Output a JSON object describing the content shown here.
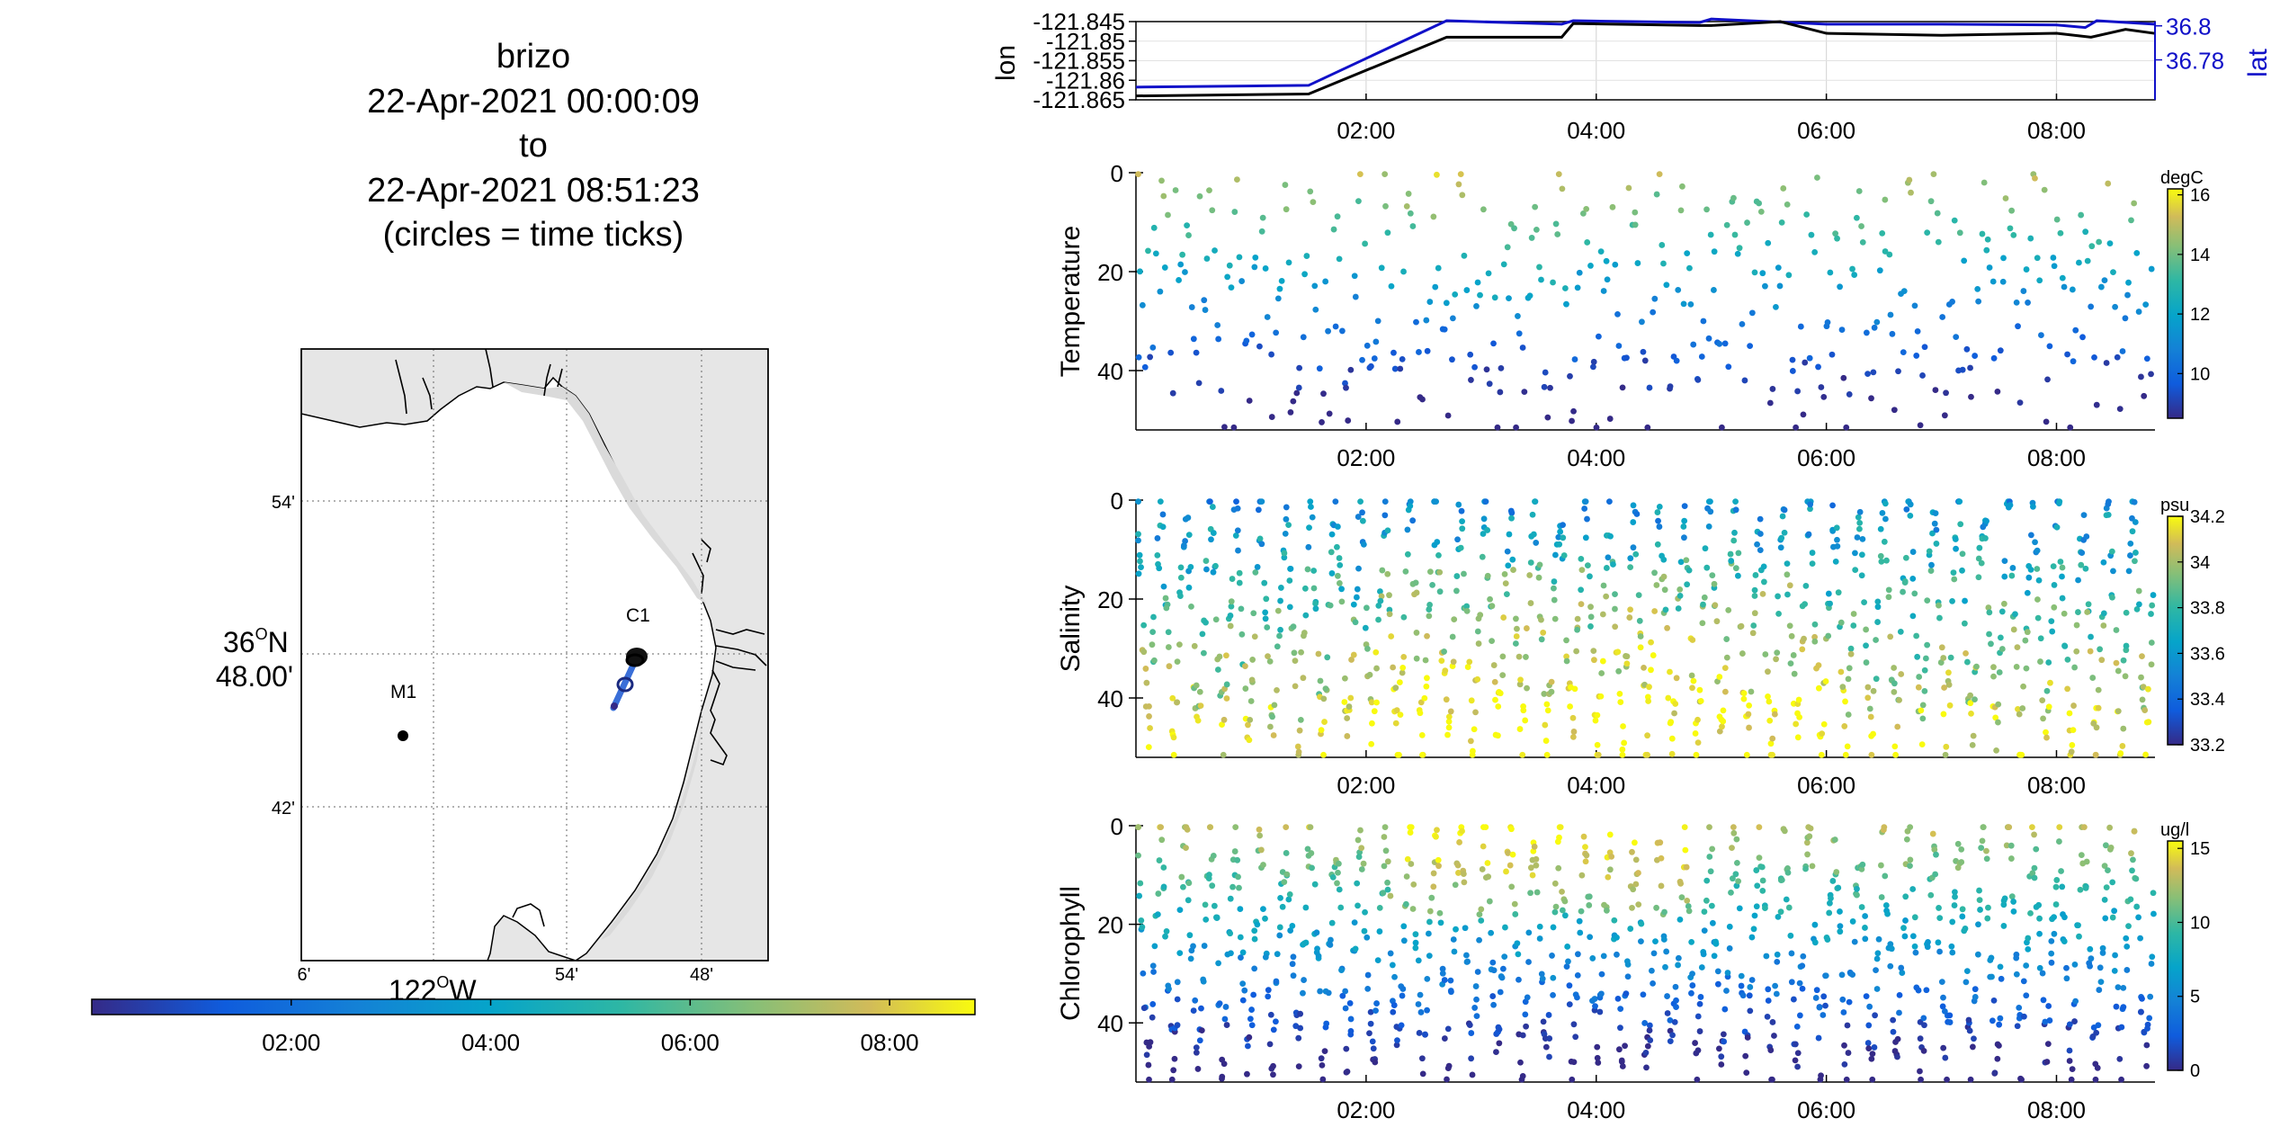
{
  "title": {
    "line1": "brizo",
    "line2": "22-Apr-2021 00:00:09",
    "line3": "to",
    "line4": "22-Apr-2021 08:51:23",
    "line5": "(circles = time ticks)"
  },
  "map": {
    "lat_ticks": [
      "54'",
      "36°N 48.00'",
      "42'"
    ],
    "lat_tick_top": "54'",
    "lat_tick_mid_1": "36",
    "lat_tick_mid_deg": "O",
    "lat_tick_mid_2": "N",
    "lat_tick_mid_line2": "48.00'",
    "lat_tick_bottom": "42'",
    "lon_tick_1": "6'",
    "lon_tick_2": "54'",
    "lon_tick_3": "48'",
    "lon_label_1": "122",
    "lon_label_deg": "O",
    "lon_label_2": "W",
    "station_c1": "C1",
    "station_m1": "M1",
    "colors": {
      "land": "#e6e6e6",
      "track": "#3a6fd8",
      "marker": "#000000"
    }
  },
  "time_colorbar": {
    "ticks": [
      "02:00",
      "04:00",
      "06:00",
      "08:00"
    ],
    "colormap": "parula"
  },
  "chart_data": [
    {
      "type": "line",
      "id": "position",
      "x_range": [
        "00:00:09",
        "08:51:23"
      ],
      "x_ticks": [
        "02:00",
        "04:00",
        "06:00",
        "08:00"
      ],
      "ylabel_left": "lon",
      "ylabel_right": "lat",
      "yticks_left": [
        "-121.845",
        "-121.85",
        "-121.855",
        "-121.86",
        "-121.865"
      ],
      "yticks_right": [
        "36.8",
        "36.78"
      ],
      "series": [
        {
          "name": "lon",
          "color": "#000000",
          "x": [
            0.0,
            1.5,
            2.7,
            3.7,
            3.8,
            4.9,
            5.0,
            5.6,
            6.0,
            7.0,
            8.0,
            8.3,
            8.6,
            8.85
          ],
          "y": [
            -121.864,
            -121.8635,
            -121.849,
            -121.849,
            -121.8455,
            -121.846,
            -121.846,
            -121.845,
            -121.848,
            -121.8485,
            -121.848,
            -121.849,
            -121.847,
            -121.848
          ]
        },
        {
          "name": "lat",
          "color": "#1010c8",
          "x": [
            0.0,
            1.5,
            2.7,
            3.7,
            3.8,
            4.9,
            5.0,
            6.0,
            7.0,
            8.0,
            8.25,
            8.35,
            8.85
          ],
          "y": [
            36.764,
            36.765,
            36.803,
            36.801,
            36.803,
            36.802,
            36.804,
            36.801,
            36.801,
            36.8005,
            36.799,
            36.803,
            36.801
          ]
        }
      ]
    },
    {
      "type": "scatter",
      "id": "temperature",
      "ylabel": "Temperature",
      "unit": "degC",
      "yticks": [
        "0",
        "20",
        "40"
      ],
      "ylim": [
        52,
        0
      ],
      "x_ticks": [
        "02:00",
        "04:00",
        "06:00",
        "08:00"
      ],
      "cbar_ticks": [
        "16",
        "14",
        "12",
        "10"
      ],
      "clim": [
        8.5,
        16.2
      ],
      "seed": 11,
      "n_points": 440
    },
    {
      "type": "scatter",
      "id": "salinity",
      "ylabel": "Salinity",
      "unit": "psu",
      "yticks": [
        "0",
        "20",
        "40"
      ],
      "ylim": [
        52,
        0
      ],
      "x_ticks": [
        "02:00",
        "04:00",
        "06:00",
        "08:00"
      ],
      "cbar_ticks": [
        "34.2",
        "34",
        "33.8",
        "33.6",
        "33.4",
        "33.2"
      ],
      "clim": [
        33.2,
        34.2
      ],
      "seed": 23,
      "n_points": 1100
    },
    {
      "type": "scatter",
      "id": "chlorophyll",
      "ylabel": "Chlorophyll",
      "unit": "ug/l",
      "yticks": [
        "0",
        "20",
        "40"
      ],
      "ylim": [
        52,
        0
      ],
      "x_ticks": [
        "02:00",
        "04:00",
        "06:00",
        "08:00"
      ],
      "cbar_ticks": [
        "15",
        "10",
        "5",
        "0"
      ],
      "clim": [
        0,
        15.5
      ],
      "seed": 37,
      "n_points": 1100
    }
  ]
}
